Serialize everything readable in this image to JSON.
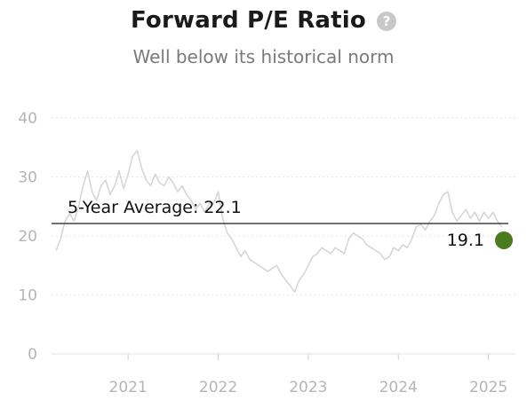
{
  "header": {
    "title": "Forward P/E Ratio",
    "help_icon": "question-circle-icon",
    "subtitle": "Well below its historical norm"
  },
  "chart_data": {
    "type": "line",
    "title": "Forward P/E Ratio",
    "subtitle": "Well below its historical norm",
    "xlabel": "",
    "ylabel": "",
    "ylim": [
      0,
      40
    ],
    "xlim": [
      2020.15,
      2025.3
    ],
    "y_ticks": [
      0,
      10,
      20,
      30,
      40
    ],
    "x_ticks": [
      2021,
      2022,
      2023,
      2024,
      2025
    ],
    "x_tick_labels": [
      "2021",
      "2022",
      "2023",
      "2024",
      "2025"
    ],
    "grid": "horizontal dashed",
    "series": [
      {
        "color": "#d6d6d6",
        "points": [
          [
            2020.2,
            17.5
          ],
          [
            2020.25,
            19.5
          ],
          [
            2020.3,
            22.5
          ],
          [
            2020.35,
            23.8
          ],
          [
            2020.4,
            22.5
          ],
          [
            2020.45,
            25.0
          ],
          [
            2020.5,
            28.5
          ],
          [
            2020.55,
            31.0
          ],
          [
            2020.6,
            27.5
          ],
          [
            2020.65,
            26.0
          ],
          [
            2020.7,
            28.5
          ],
          [
            2020.75,
            29.5
          ],
          [
            2020.8,
            27.0
          ],
          [
            2020.85,
            28.5
          ],
          [
            2020.9,
            31.0
          ],
          [
            2020.95,
            28.0
          ],
          [
            2021.0,
            30.5
          ],
          [
            2021.05,
            33.5
          ],
          [
            2021.1,
            34.5
          ],
          [
            2021.15,
            31.5
          ],
          [
            2021.2,
            29.5
          ],
          [
            2021.25,
            28.5
          ],
          [
            2021.3,
            30.5
          ],
          [
            2021.35,
            29.0
          ],
          [
            2021.4,
            28.5
          ],
          [
            2021.45,
            30.0
          ],
          [
            2021.5,
            29.0
          ],
          [
            2021.55,
            27.5
          ],
          [
            2021.6,
            28.5
          ],
          [
            2021.65,
            27.0
          ],
          [
            2021.7,
            26.0
          ],
          [
            2021.75,
            24.5
          ],
          [
            2021.8,
            25.5
          ],
          [
            2021.85,
            24.0
          ],
          [
            2021.9,
            25.5
          ],
          [
            2021.95,
            25.5
          ],
          [
            2022.0,
            27.5
          ],
          [
            2022.05,
            23.0
          ],
          [
            2022.1,
            20.5
          ],
          [
            2022.15,
            19.5
          ],
          [
            2022.2,
            18.0
          ],
          [
            2022.25,
            16.5
          ],
          [
            2022.3,
            17.5
          ],
          [
            2022.35,
            16.0
          ],
          [
            2022.4,
            15.5
          ],
          [
            2022.45,
            15.0
          ],
          [
            2022.5,
            14.5
          ],
          [
            2022.55,
            14.0
          ],
          [
            2022.6,
            14.5
          ],
          [
            2022.65,
            15.0
          ],
          [
            2022.7,
            13.5
          ],
          [
            2022.75,
            12.5
          ],
          [
            2022.8,
            11.5
          ],
          [
            2022.85,
            10.5
          ],
          [
            2022.9,
            12.5
          ],
          [
            2022.95,
            13.5
          ],
          [
            2023.0,
            15.0
          ],
          [
            2023.05,
            16.5
          ],
          [
            2023.1,
            17.0
          ],
          [
            2023.15,
            18.0
          ],
          [
            2023.2,
            17.5
          ],
          [
            2023.25,
            17.0
          ],
          [
            2023.3,
            18.0
          ],
          [
            2023.35,
            17.5
          ],
          [
            2023.4,
            17.0
          ],
          [
            2023.45,
            19.5
          ],
          [
            2023.5,
            20.5
          ],
          [
            2023.55,
            20.0
          ],
          [
            2023.6,
            19.5
          ],
          [
            2023.65,
            18.5
          ],
          [
            2023.7,
            18.0
          ],
          [
            2023.75,
            17.5
          ],
          [
            2023.8,
            17.0
          ],
          [
            2023.85,
            16.0
          ],
          [
            2023.9,
            16.5
          ],
          [
            2023.95,
            18.0
          ],
          [
            2024.0,
            17.5
          ],
          [
            2024.05,
            18.5
          ],
          [
            2024.1,
            18.0
          ],
          [
            2024.15,
            19.5
          ],
          [
            2024.2,
            21.5
          ],
          [
            2024.25,
            22.0
          ],
          [
            2024.3,
            21.0
          ],
          [
            2024.35,
            22.5
          ],
          [
            2024.4,
            23.5
          ],
          [
            2024.45,
            25.5
          ],
          [
            2024.5,
            27.0
          ],
          [
            2024.55,
            27.5
          ],
          [
            2024.6,
            24.0
          ],
          [
            2024.65,
            22.5
          ],
          [
            2024.7,
            23.5
          ],
          [
            2024.75,
            24.5
          ],
          [
            2024.8,
            23.0
          ],
          [
            2024.85,
            24.0
          ],
          [
            2024.9,
            22.5
          ],
          [
            2024.95,
            24.0
          ],
          [
            2025.0,
            23.0
          ],
          [
            2025.05,
            24.0
          ],
          [
            2025.1,
            22.5
          ],
          [
            2025.15,
            21.5
          ]
        ]
      }
    ],
    "average": {
      "value": 22.1,
      "label": "5-Year Average: 22.1"
    },
    "current": {
      "x": 2025.2,
      "value": 19.1,
      "label": "19.1",
      "color": "#4a7c1f"
    }
  }
}
